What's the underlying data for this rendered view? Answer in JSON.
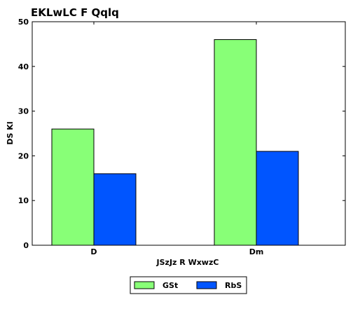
{
  "chart_data": {
    "type": "bar",
    "title": "EKLwLC F Qqlq",
    "xlabel": "JSzJz R WxwzC",
    "ylabel": "DS Kl",
    "categories": [
      "D",
      "Dm"
    ],
    "series": [
      {
        "name": "GSt",
        "values": [
          26,
          46
        ],
        "color": "#88ff77"
      },
      {
        "name": "RbS",
        "values": [
          16,
          21
        ],
        "color": "#0055ff"
      }
    ],
    "ylim": [
      0,
      50
    ],
    "yticks": [
      0,
      10,
      20,
      30,
      40,
      50
    ],
    "grid": false,
    "legend_position": "bottom-center"
  }
}
